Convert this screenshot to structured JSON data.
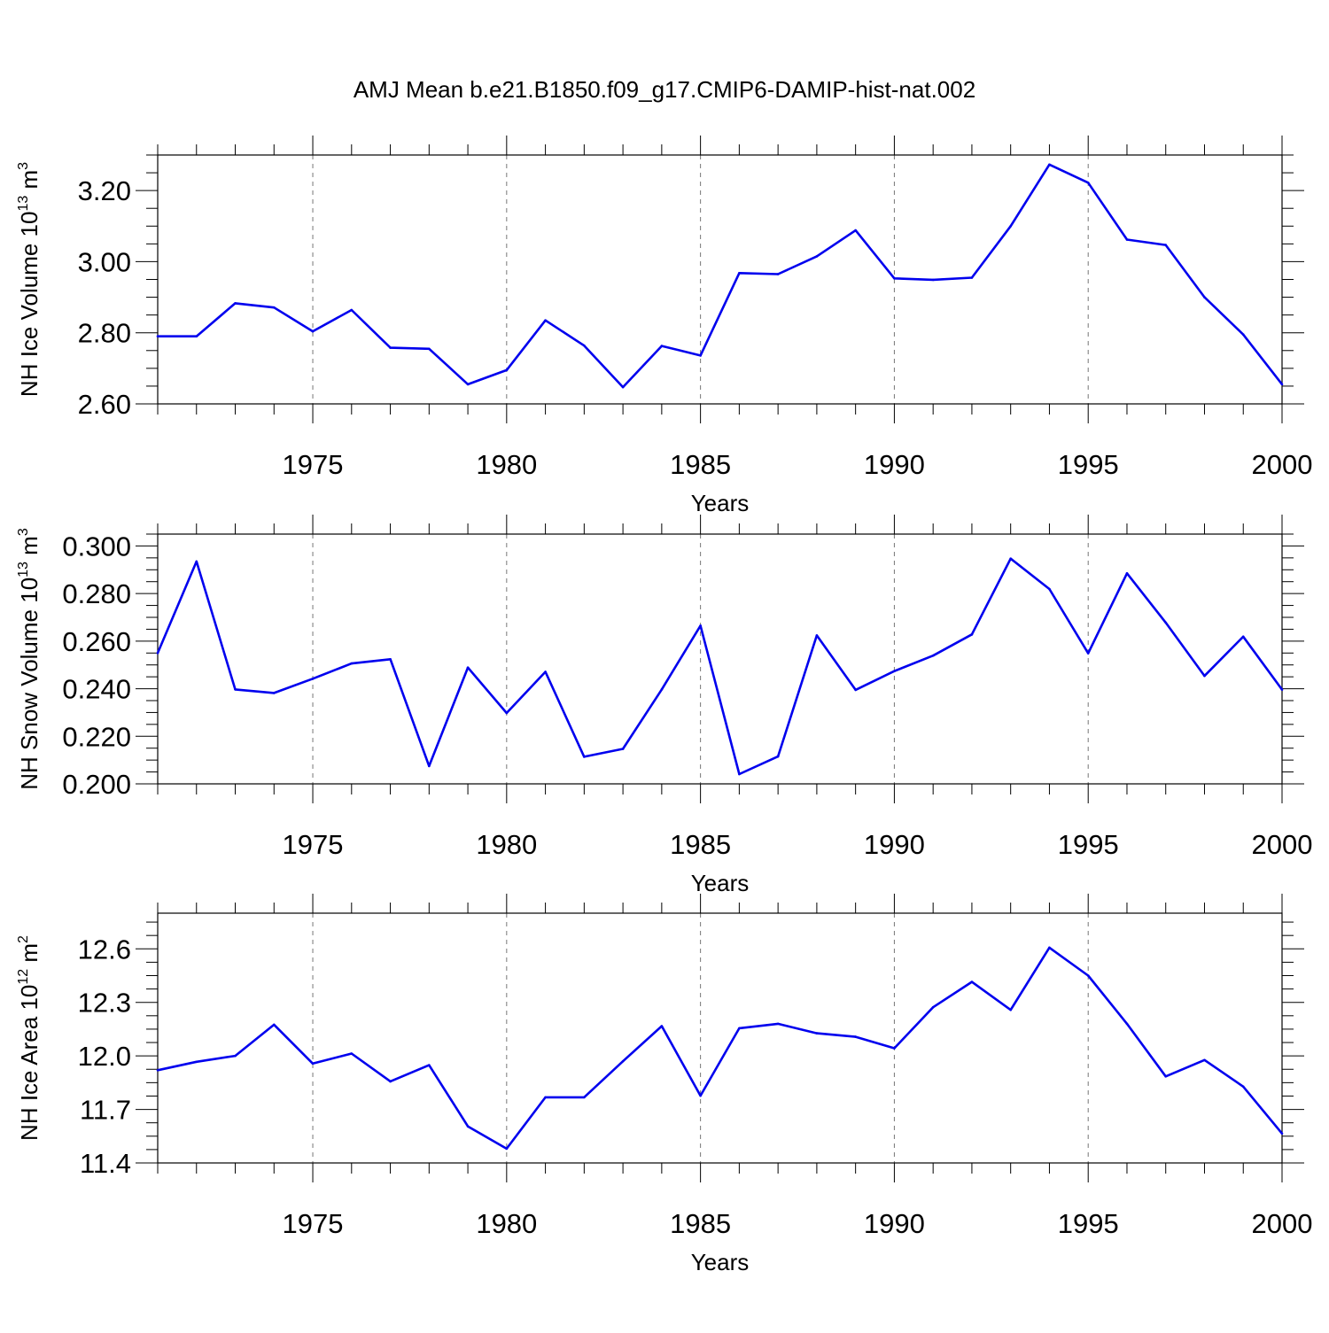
{
  "title": "AMJ Mean b.e21.B1850.f09_g17.CMIP6-DAMIP-hist-nat.002",
  "line_color": "#0000ee",
  "chart_data": [
    {
      "type": "line",
      "ylabel": "NH Ice Volume 10",
      "ylabel_exp": "13",
      "ylabel_unit": " m",
      "ylabel_unit_exp": "3",
      "xlabel": "Years",
      "xlim": [
        1971,
        2000
      ],
      "ylim": [
        2.6,
        3.3
      ],
      "yticks": [
        2.6,
        2.8,
        3.0,
        3.2
      ],
      "ytick_labels": [
        "2.60",
        "2.80",
        "3.00",
        "3.20"
      ],
      "xticks": [
        1975,
        1980,
        1985,
        1990,
        1995,
        2000
      ],
      "xtick_labels": [
        "1975",
        "1980",
        "1985",
        "1990",
        "1995",
        "2000"
      ],
      "grid": "vertical-dashed",
      "x": [
        1971,
        1972,
        1973,
        1974,
        1975,
        1976,
        1977,
        1978,
        1979,
        1980,
        1981,
        1982,
        1983,
        1984,
        1985,
        1986,
        1987,
        1988,
        1989,
        1990,
        1991,
        1992,
        1993,
        1994,
        1995,
        1996,
        1997,
        1998,
        1999,
        2000
      ],
      "values": [
        2.79,
        2.79,
        2.883,
        2.871,
        2.804,
        2.864,
        2.758,
        2.755,
        2.655,
        2.695,
        2.835,
        2.764,
        2.647,
        2.763,
        2.736,
        2.968,
        2.965,
        3.015,
        3.088,
        2.953,
        2.949,
        2.955,
        3.1,
        3.273,
        3.222,
        3.062,
        3.047,
        2.9,
        2.795,
        2.655
      ]
    },
    {
      "type": "line",
      "ylabel": "NH Snow Volume 10",
      "ylabel_exp": "13",
      "ylabel_unit": " m",
      "ylabel_unit_exp": "3",
      "xlabel": "Years",
      "xlim": [
        1971,
        2000
      ],
      "ylim": [
        0.2,
        0.305
      ],
      "yticks": [
        0.2,
        0.22,
        0.24,
        0.26,
        0.28,
        0.3
      ],
      "ytick_labels": [
        "0.200",
        "0.220",
        "0.240",
        "0.260",
        "0.280",
        "0.300"
      ],
      "xticks": [
        1975,
        1980,
        1985,
        1990,
        1995,
        2000
      ],
      "xtick_labels": [
        "1975",
        "1980",
        "1985",
        "1990",
        "1995",
        "2000"
      ],
      "grid": "vertical-dashed",
      "x": [
        1971,
        1972,
        1973,
        1974,
        1975,
        1976,
        1977,
        1978,
        1979,
        1980,
        1981,
        1982,
        1983,
        1984,
        1985,
        1986,
        1987,
        1988,
        1989,
        1990,
        1991,
        1992,
        1993,
        1994,
        1995,
        1996,
        1997,
        1998,
        1999,
        2000
      ],
      "values": [
        0.255,
        0.2935,
        0.2397,
        0.2382,
        0.2442,
        0.2506,
        0.2524,
        0.2075,
        0.2489,
        0.2298,
        0.2471,
        0.2114,
        0.2147,
        0.2397,
        0.2665,
        0.2041,
        0.2115,
        0.2624,
        0.2395,
        0.2474,
        0.2539,
        0.2628,
        0.2947,
        0.2819,
        0.2549,
        0.2885,
        0.2678,
        0.2454,
        0.2619,
        0.2396
      ]
    },
    {
      "type": "line",
      "ylabel": "NH Ice Area 10",
      "ylabel_exp": "12",
      "ylabel_unit": " m",
      "ylabel_unit_exp": "2",
      "xlabel": "Years",
      "xlim": [
        1971,
        2000
      ],
      "ylim": [
        11.4,
        12.8
      ],
      "yticks": [
        11.4,
        11.7,
        12.0,
        12.3,
        12.6
      ],
      "ytick_labels": [
        "11.4",
        "11.7",
        "12.0",
        "12.3",
        "12.6"
      ],
      "xticks": [
        1975,
        1980,
        1985,
        1990,
        1995,
        2000
      ],
      "xtick_labels": [
        "1975",
        "1980",
        "1985",
        "1990",
        "1995",
        "2000"
      ],
      "grid": "vertical-dashed",
      "x": [
        1971,
        1972,
        1973,
        1974,
        1975,
        1976,
        1977,
        1978,
        1979,
        1980,
        1981,
        1982,
        1983,
        1984,
        1985,
        1986,
        1987,
        1988,
        1989,
        1990,
        1991,
        1992,
        1993,
        1994,
        1995,
        1996,
        1997,
        1998,
        1999,
        2000
      ],
      "values": [
        11.92,
        11.967,
        12.0,
        12.175,
        11.957,
        12.013,
        11.857,
        11.948,
        11.605,
        11.48,
        11.768,
        11.768,
        11.97,
        12.167,
        11.777,
        12.155,
        12.18,
        12.127,
        12.107,
        12.043,
        12.273,
        12.415,
        12.258,
        12.607,
        12.45,
        12.18,
        11.885,
        11.977,
        11.828,
        11.565
      ]
    }
  ]
}
